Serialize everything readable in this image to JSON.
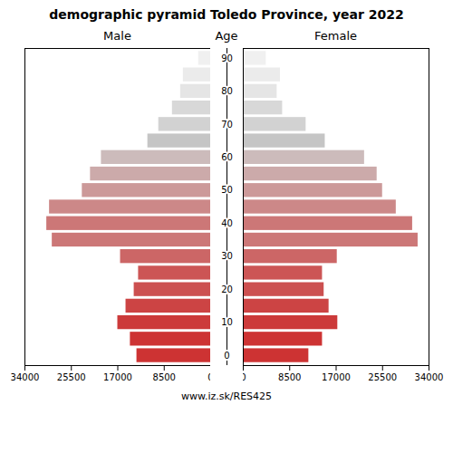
{
  "chart_data": {
    "type": "pyramid",
    "orientation": "horizontal",
    "title": "demographic pyramid Toledo Province, year 2022",
    "ylabel": "Age",
    "categories": [
      0,
      5,
      10,
      15,
      20,
      25,
      30,
      35,
      40,
      45,
      50,
      55,
      60,
      65,
      70,
      75,
      80,
      85,
      90
    ],
    "series": [
      {
        "name": "Male",
        "values": [
          13500,
          14700,
          17000,
          15500,
          14000,
          13200,
          16500,
          29000,
          30000,
          29500,
          23500,
          22000,
          20000,
          11500,
          9500,
          7000,
          5500,
          5000,
          2200
        ],
        "colors": [
          "#cd3333",
          "#cd3333",
          "#cc3a3a",
          "#cc4444",
          "#cc5050",
          "#cc5555",
          "#cc6666",
          "#cc7777",
          "#cc7777",
          "#cc8888",
          "#cc9999",
          "#ccaaaa",
          "#ccbbbb",
          "#c5c5c5",
          "#d2d2d2",
          "#d8d8d8",
          "#e5e5e5",
          "#ebebeb",
          "#f0f0f0"
        ]
      },
      {
        "name": "Female",
        "values": [
          12000,
          14500,
          17300,
          15700,
          14800,
          14500,
          17200,
          32000,
          31000,
          28000,
          25500,
          24500,
          22200,
          15000,
          11500,
          7200,
          6200,
          6800,
          4200
        ],
        "colors": [
          "#cd3333",
          "#cd3333",
          "#cc3a3a",
          "#cc4444",
          "#cc5050",
          "#cc5555",
          "#cc6666",
          "#cc7777",
          "#cc7777",
          "#cc8888",
          "#cc9999",
          "#ccaaaa",
          "#ccbbbb",
          "#c5c5c5",
          "#d2d2d2",
          "#d8d8d8",
          "#e5e5e5",
          "#ebebeb",
          "#f0f0f0"
        ]
      }
    ],
    "xlim": [
      0,
      34000
    ],
    "xticks": [
      0,
      8500,
      17000,
      25500,
      34000
    ],
    "ylim": [
      -3,
      93
    ],
    "yticks": [
      0,
      10,
      20,
      30,
      40,
      50,
      60,
      70,
      80,
      90
    ],
    "grid": false,
    "annotations": [
      "www.iz.sk/RES425"
    ]
  }
}
